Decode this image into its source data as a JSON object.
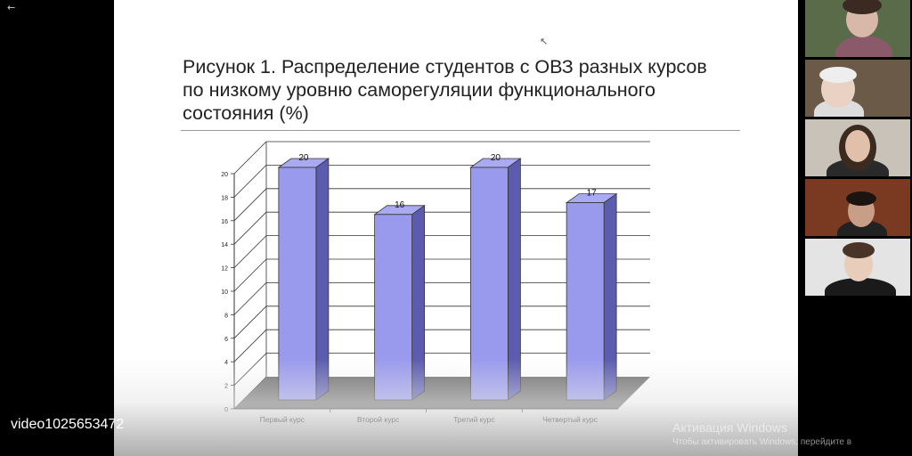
{
  "app": {
    "back_glyph": "←",
    "video_id": "video1025653472"
  },
  "slide": {
    "title": "Рисунок 1. Распределение студентов с ОВЗ разных курсов по низкому уровню саморегуляции функционального состояния (%)"
  },
  "chart_data": {
    "type": "bar",
    "categories": [
      "Первый курс",
      "Второй курс",
      "Третий курс",
      "Четвертый курс"
    ],
    "values": [
      20,
      16,
      20,
      17
    ],
    "data_labels": [
      "20",
      "16",
      "20",
      "17"
    ],
    "yticks": [
      "0",
      "2",
      "4",
      "6",
      "8",
      "10",
      "12",
      "14",
      "16",
      "18",
      "20"
    ],
    "ylim": [
      0,
      20
    ],
    "grid": true,
    "bar_color": "#9999ee",
    "style": "3d"
  },
  "participants": [
    {
      "name": "participant-1",
      "bg": "#5a6b4a"
    },
    {
      "name": "participant-2",
      "bg": "#6b5a48"
    },
    {
      "name": "participant-3",
      "bg": "#c9c2b8"
    },
    {
      "name": "participant-4",
      "bg": "#7a3a22"
    },
    {
      "name": "participant-5",
      "bg": "#e4e4e4"
    }
  ],
  "watermark": {
    "title": "Активация Windows",
    "subtitle": "Чтобы активировать Windows, перейдите в"
  }
}
